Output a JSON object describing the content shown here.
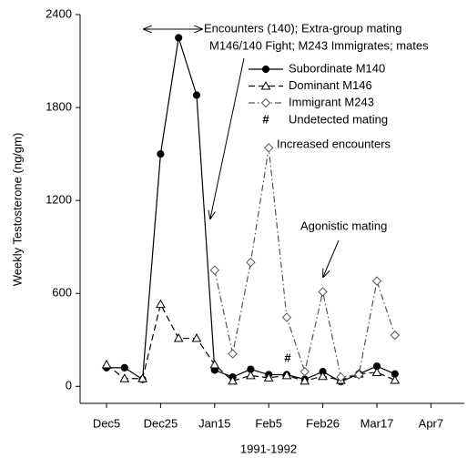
{
  "chart_data": {
    "type": "line",
    "y_label": "Weekly Testosterone (ng/gm)",
    "x_label": "1991-1992",
    "categories": [
      "Dec5",
      null,
      null,
      "Dec25",
      null,
      null,
      "Jan15",
      null,
      null,
      "Feb5",
      null,
      null,
      "Feb26",
      null,
      null,
      "Mar17",
      null,
      null,
      "Apr7"
    ],
    "ylim": [
      -110,
      2400
    ],
    "yticks": [
      0,
      600,
      1200,
      1800,
      2400
    ],
    "series": [
      {
        "name": "Subordinate M140",
        "color": "#000000",
        "marker": "circle",
        "dash": "solid",
        "values": [
          120,
          120,
          45,
          1500,
          2250,
          1880,
          105,
          60,
          110,
          75,
          75,
          45,
          95,
          30,
          80,
          130,
          80,
          null,
          null
        ]
      },
      {
        "name": "Dominant M146",
        "color": "#000000",
        "marker": "triangle",
        "dash": "dashed",
        "values": [
          140,
          50,
          50,
          530,
          310,
          310,
          140,
          35,
          70,
          55,
          70,
          35,
          65,
          40,
          80,
          90,
          40,
          null,
          null
        ]
      },
      {
        "name": "Immigrant M243",
        "color": "#555555",
        "marker": "diamond",
        "dash": "dashdot",
        "values": [
          null,
          null,
          null,
          null,
          null,
          null,
          750,
          210,
          800,
          1540,
          445,
          95,
          610,
          60,
          75,
          680,
          330,
          null,
          null
        ]
      }
    ],
    "undetected_mating": {
      "symbol": "#",
      "label": "Undetected mating"
    },
    "annotations": [
      "Encounters (140); Extra-group mating",
      "M146/140 Fight; M243 Immigrates; mates",
      "Increased encounters",
      "Agonistic mating"
    ]
  }
}
